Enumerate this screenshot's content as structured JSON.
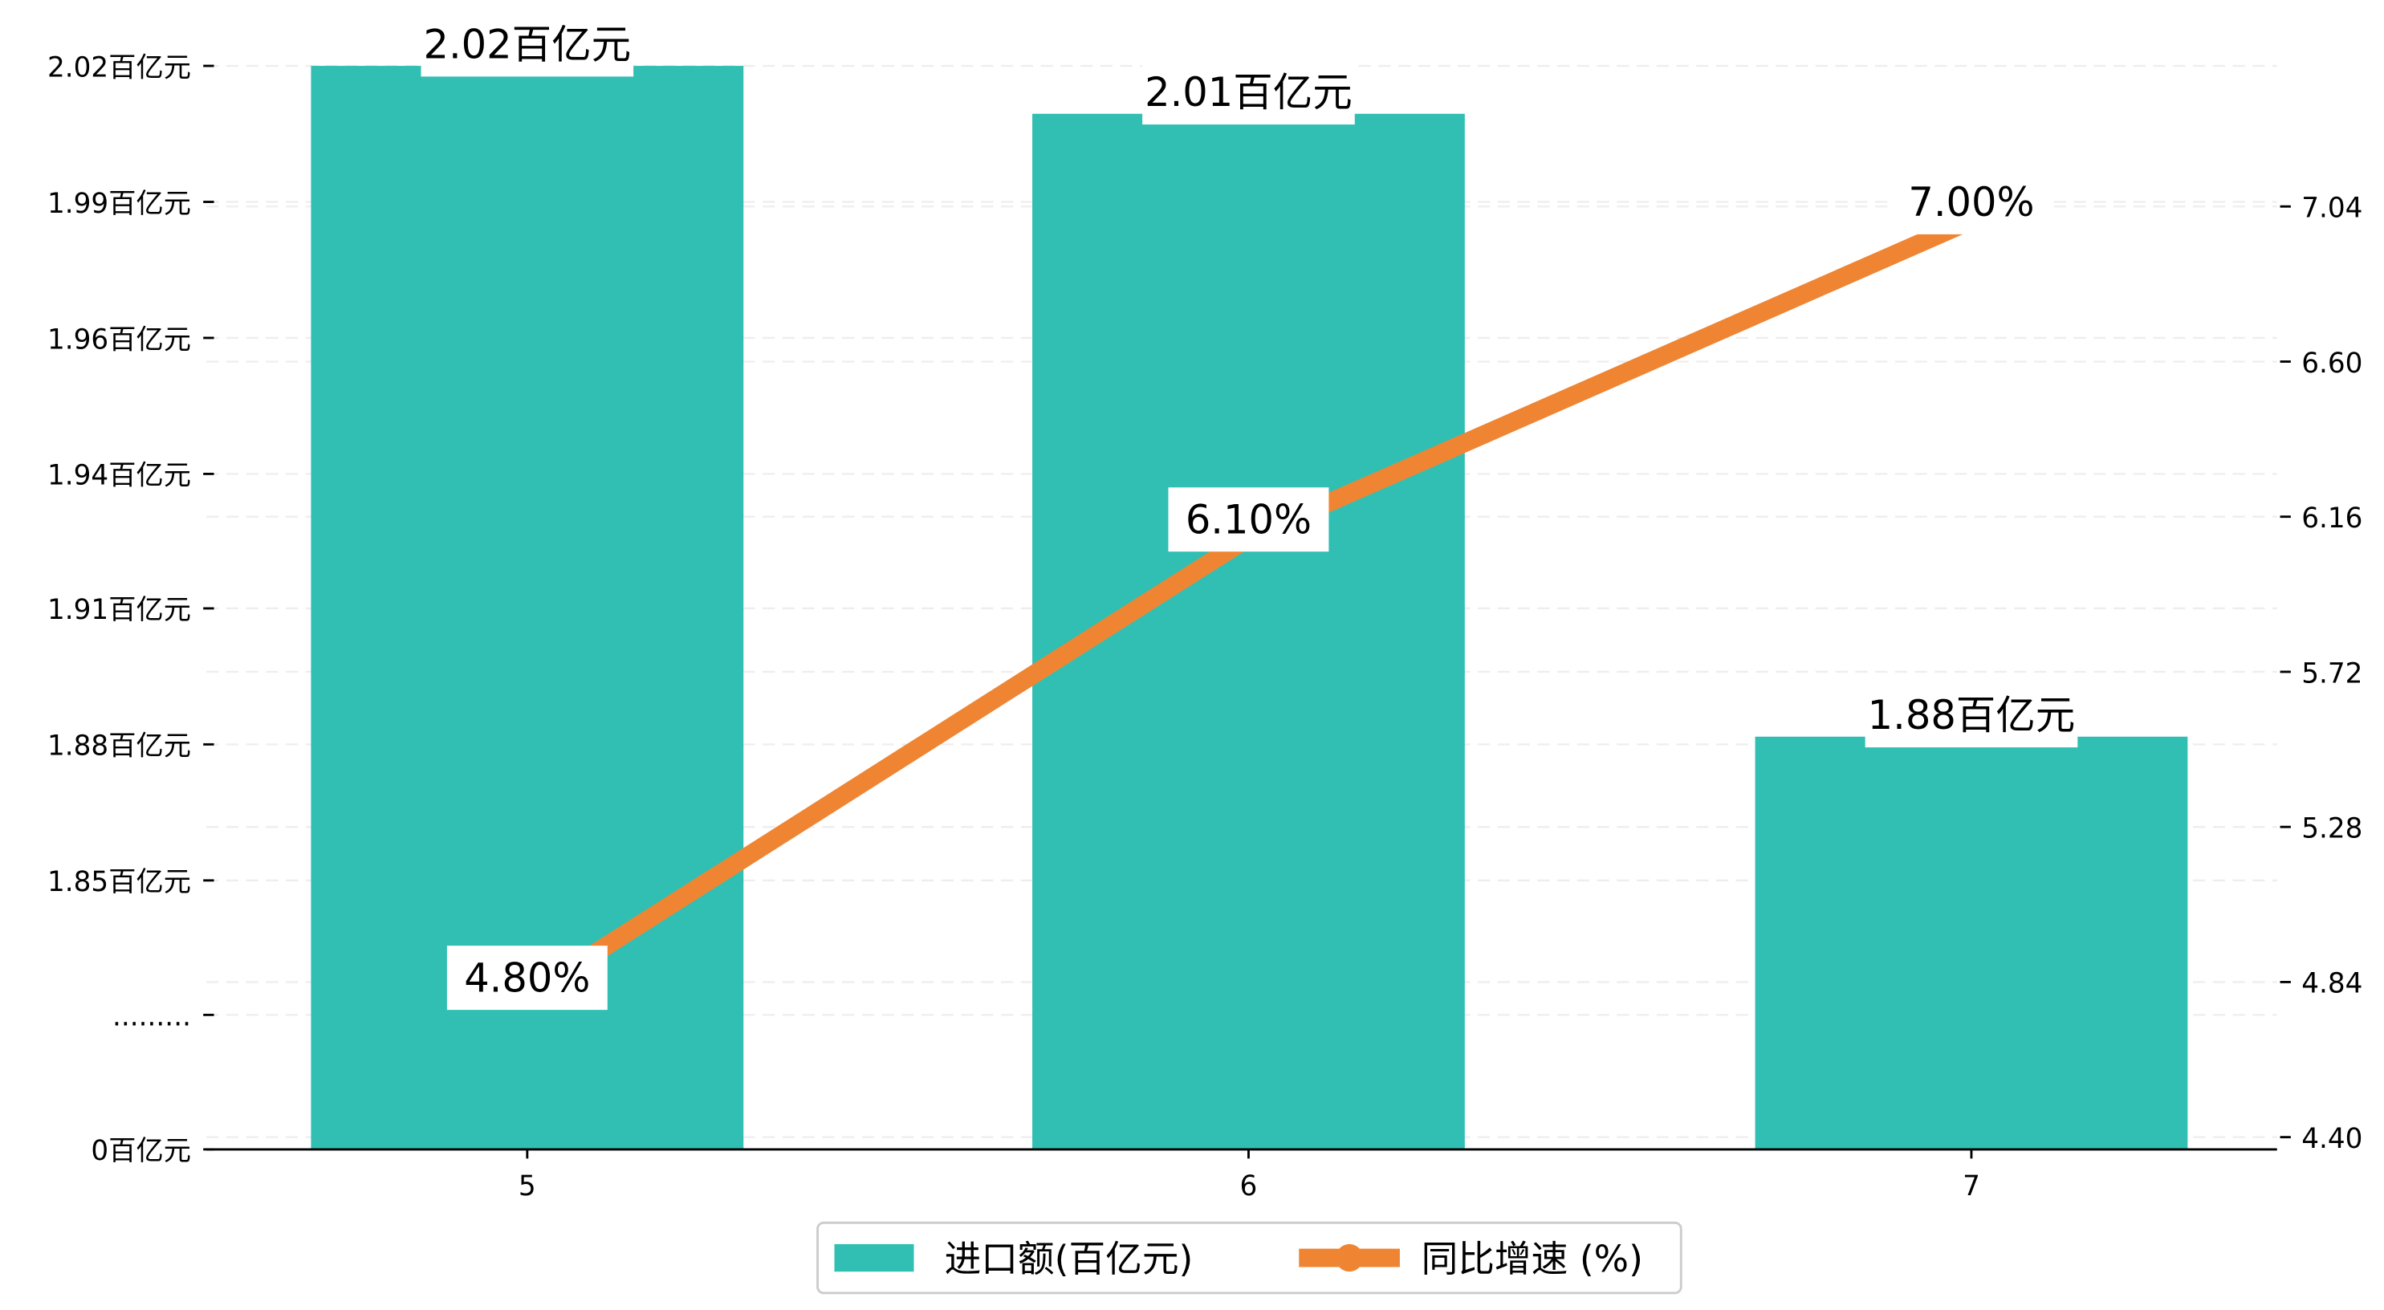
{
  "chart_data": {
    "type": "bar+line",
    "categories": [
      "5",
      "6",
      "7"
    ],
    "series": [
      {
        "name": "进口额(百亿元)",
        "type": "bar",
        "axis": "left",
        "values": [
          2.02,
          2.01,
          1.88
        ],
        "labels": [
          "2.02百亿元",
          "2.01百亿元",
          "1.88百亿元"
        ],
        "color": "#31bfb3"
      },
      {
        "name": "同比增速 (%)",
        "type": "line",
        "axis": "right",
        "values": [
          4.8,
          6.1,
          7.0
        ],
        "labels": [
          "4.80%",
          "6.10%",
          "7.00%"
        ],
        "color": "#ef8533"
      }
    ],
    "left_axis": {
      "ticks": [
        {
          "value": 2.02,
          "label": "2.02百亿元"
        },
        {
          "value": 1.99,
          "label": "1.99百亿元"
        },
        {
          "value": 1.96,
          "label": "1.96百亿元"
        },
        {
          "value": 1.94,
          "label": "1.94百亿元"
        },
        {
          "value": 1.91,
          "label": "1.91百亿元"
        },
        {
          "value": 1.88,
          "label": "1.88百亿元"
        },
        {
          "value": 1.85,
          "label": "1.85百亿元"
        },
        {
          "value": null,
          "label": "........."
        },
        {
          "value": 0,
          "label": "0百亿元"
        }
      ],
      "broken": true
    },
    "right_axis": {
      "ticks": [
        "7.04",
        "6.60",
        "6.16",
        "5.72",
        "5.28",
        "4.84",
        "4.40"
      ],
      "ylim": [
        4.4,
        7.04
      ]
    },
    "grid": true,
    "legend": {
      "placement": "bottom-center",
      "entries": [
        "进口额(百亿元)",
        "同比增速 (%)"
      ]
    }
  }
}
